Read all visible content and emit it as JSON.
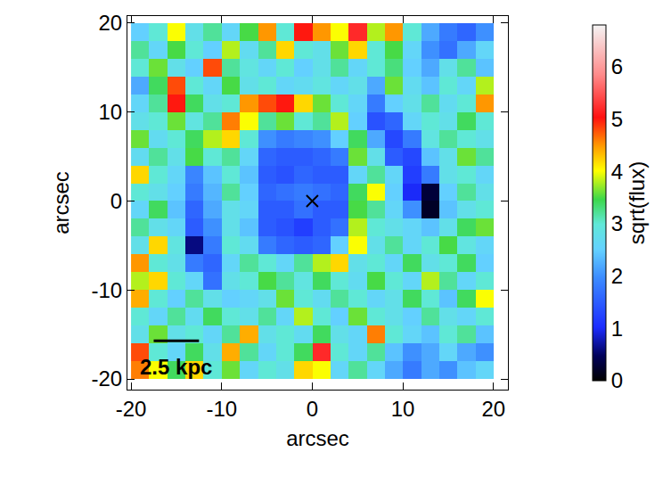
{
  "chart_data": {
    "type": "heatmap",
    "xlabel": "arcsec",
    "ylabel": "arcsec",
    "xlim": [
      -20.4,
      21.6
    ],
    "ylim": [
      -21.2,
      20.8
    ],
    "xticks": [
      -20,
      -10,
      0,
      10,
      20
    ],
    "yticks": [
      -20,
      -10,
      0,
      10,
      20
    ],
    "x": [
      -19,
      -17,
      -15,
      -13,
      -11,
      -9,
      -7,
      -5,
      -3,
      -1,
      1,
      3,
      5,
      7,
      9,
      11,
      13,
      15,
      17,
      19
    ],
    "y": [
      19,
      17,
      15,
      13,
      11,
      9,
      7,
      5,
      3,
      1,
      -1,
      -3,
      -5,
      -7,
      -9,
      -11,
      -13,
      -15,
      -17,
      -19
    ],
    "z": [
      [
        2.5,
        3.0,
        4.0,
        2.8,
        3.2,
        2.6,
        3.5,
        4.5,
        3.0,
        5.0,
        4.5,
        4.0,
        5.2,
        3.8,
        4.5,
        3.0,
        2.2,
        1.8,
        1.6,
        2.0
      ],
      [
        3.2,
        2.6,
        3.5,
        3.0,
        2.5,
        3.8,
        2.7,
        3.2,
        4.2,
        3.0,
        2.8,
        3.6,
        4.2,
        3.0,
        3.5,
        2.6,
        2.0,
        1.7,
        2.2,
        2.6
      ],
      [
        3.0,
        3.6,
        2.8,
        2.5,
        4.8,
        3.2,
        2.9,
        2.6,
        3.0,
        2.5,
        2.8,
        3.2,
        2.6,
        3.0,
        3.3,
        2.5,
        2.2,
        2.8,
        3.2,
        2.4
      ],
      [
        2.2,
        3.4,
        4.8,
        3.0,
        2.6,
        3.5,
        2.8,
        3.0,
        2.6,
        2.7,
        2.9,
        2.6,
        2.8,
        2.2,
        3.6,
        2.7,
        2.4,
        3.0,
        2.6,
        3.8
      ],
      [
        2.6,
        3.2,
        5.0,
        3.4,
        2.8,
        3.0,
        4.5,
        4.8,
        5.0,
        4.2,
        3.6,
        3.0,
        2.6,
        1.8,
        2.5,
        2.8,
        3.2,
        2.7,
        3.0,
        4.5
      ],
      [
        2.8,
        3.0,
        3.6,
        2.9,
        3.2,
        4.6,
        4.0,
        3.2,
        3.6,
        3.0,
        3.2,
        3.8,
        2.5,
        1.4,
        1.6,
        2.6,
        3.0,
        2.8,
        3.4,
        3.0
      ],
      [
        3.6,
        2.7,
        3.0,
        3.4,
        3.8,
        4.2,
        3.0,
        2.0,
        1.8,
        1.9,
        2.0,
        2.5,
        3.4,
        2.2,
        1.3,
        1.8,
        2.9,
        3.2,
        3.0,
        2.8
      ],
      [
        2.7,
        3.2,
        2.8,
        3.5,
        3.0,
        3.2,
        2.6,
        1.6,
        1.5,
        1.5,
        1.6,
        1.8,
        3.6,
        2.8,
        1.5,
        1.3,
        2.4,
        2.8,
        3.6,
        3.2
      ],
      [
        4.2,
        3.0,
        2.6,
        1.9,
        2.4,
        3.0,
        2.4,
        1.5,
        1.4,
        1.6,
        1.5,
        1.5,
        2.6,
        3.2,
        2.6,
        1.2,
        1.8,
        2.8,
        3.0,
        2.6
      ],
      [
        3.0,
        2.8,
        2.5,
        1.8,
        2.3,
        3.2,
        2.5,
        1.6,
        1.7,
        1.8,
        1.7,
        1.6,
        3.4,
        4.0,
        2.5,
        1.0,
        0.3,
        2.5,
        3.2,
        2.8
      ],
      [
        2.6,
        3.4,
        2.4,
        1.6,
        2.2,
        2.8,
        2.6,
        1.5,
        1.5,
        1.7,
        1.5,
        1.5,
        3.5,
        3.2,
        2.6,
        2.0,
        0.2,
        2.4,
        2.8,
        3.0
      ],
      [
        3.2,
        2.8,
        2.6,
        1.5,
        2.0,
        2.8,
        2.4,
        1.5,
        1.4,
        1.2,
        1.5,
        1.7,
        3.8,
        3.0,
        2.8,
        2.6,
        2.4,
        2.8,
        3.4,
        3.6
      ],
      [
        2.8,
        4.2,
        2.9,
        0.6,
        1.8,
        3.0,
        2.7,
        1.8,
        1.6,
        1.5,
        1.6,
        2.5,
        4.0,
        2.8,
        3.2,
        2.6,
        3.0,
        3.5,
        2.9,
        2.6
      ],
      [
        4.5,
        3.0,
        2.8,
        1.8,
        1.6,
        2.6,
        3.2,
        3.0,
        2.6,
        3.2,
        3.8,
        4.2,
        2.8,
        3.0,
        2.6,
        3.4,
        2.8,
        3.0,
        3.4,
        2.5
      ],
      [
        3.8,
        4.2,
        3.0,
        2.6,
        1.7,
        2.8,
        3.0,
        3.5,
        3.2,
        2.9,
        3.4,
        3.0,
        2.7,
        3.5,
        3.0,
        2.6,
        3.8,
        3.2,
        2.6,
        3.0
      ],
      [
        4.4,
        3.0,
        2.5,
        3.2,
        2.8,
        2.5,
        2.6,
        2.8,
        3.6,
        3.0,
        2.7,
        3.2,
        3.0,
        2.6,
        2.8,
        3.4,
        3.0,
        2.4,
        3.4,
        4.0
      ],
      [
        3.0,
        2.6,
        3.2,
        2.7,
        3.4,
        3.0,
        2.8,
        3.2,
        2.6,
        3.8,
        3.0,
        2.5,
        3.6,
        3.0,
        2.8,
        2.5,
        3.2,
        2.8,
        2.6,
        3.0
      ],
      [
        2.8,
        3.6,
        2.8,
        3.0,
        2.6,
        3.2,
        4.4,
        2.8,
        3.0,
        2.7,
        3.4,
        2.8,
        2.6,
        4.6,
        3.0,
        2.6,
        2.4,
        3.0,
        3.2,
        2.4
      ],
      [
        4.8,
        3.0,
        2.6,
        3.4,
        2.8,
        4.4,
        3.2,
        2.6,
        3.0,
        3.4,
        5.2,
        3.0,
        2.6,
        3.2,
        2.4,
        2.0,
        2.2,
        2.6,
        2.2,
        2.0
      ],
      [
        4.6,
        4.0,
        3.4,
        4.2,
        3.0,
        3.6,
        2.6,
        3.0,
        2.8,
        4.2,
        4.0,
        2.6,
        3.2,
        2.6,
        2.2,
        1.8,
        2.2,
        2.0,
        2.4,
        2.6
      ]
    ],
    "colorbar": {
      "title": "sqrt(flux)",
      "range": [
        0,
        6.8
      ],
      "ticks": [
        0,
        1,
        2,
        3,
        4,
        5,
        6
      ]
    },
    "markers": [
      {
        "x": 0,
        "y": 0,
        "marker": "x",
        "color": "#000000"
      }
    ],
    "scale_bar": {
      "x": [
        -17.5,
        -12.5
      ],
      "y": -15.7,
      "color": "#000000"
    },
    "annotations": [
      {
        "text": "2.5 kpc",
        "x": -15,
        "y": -18.6
      }
    ]
  }
}
